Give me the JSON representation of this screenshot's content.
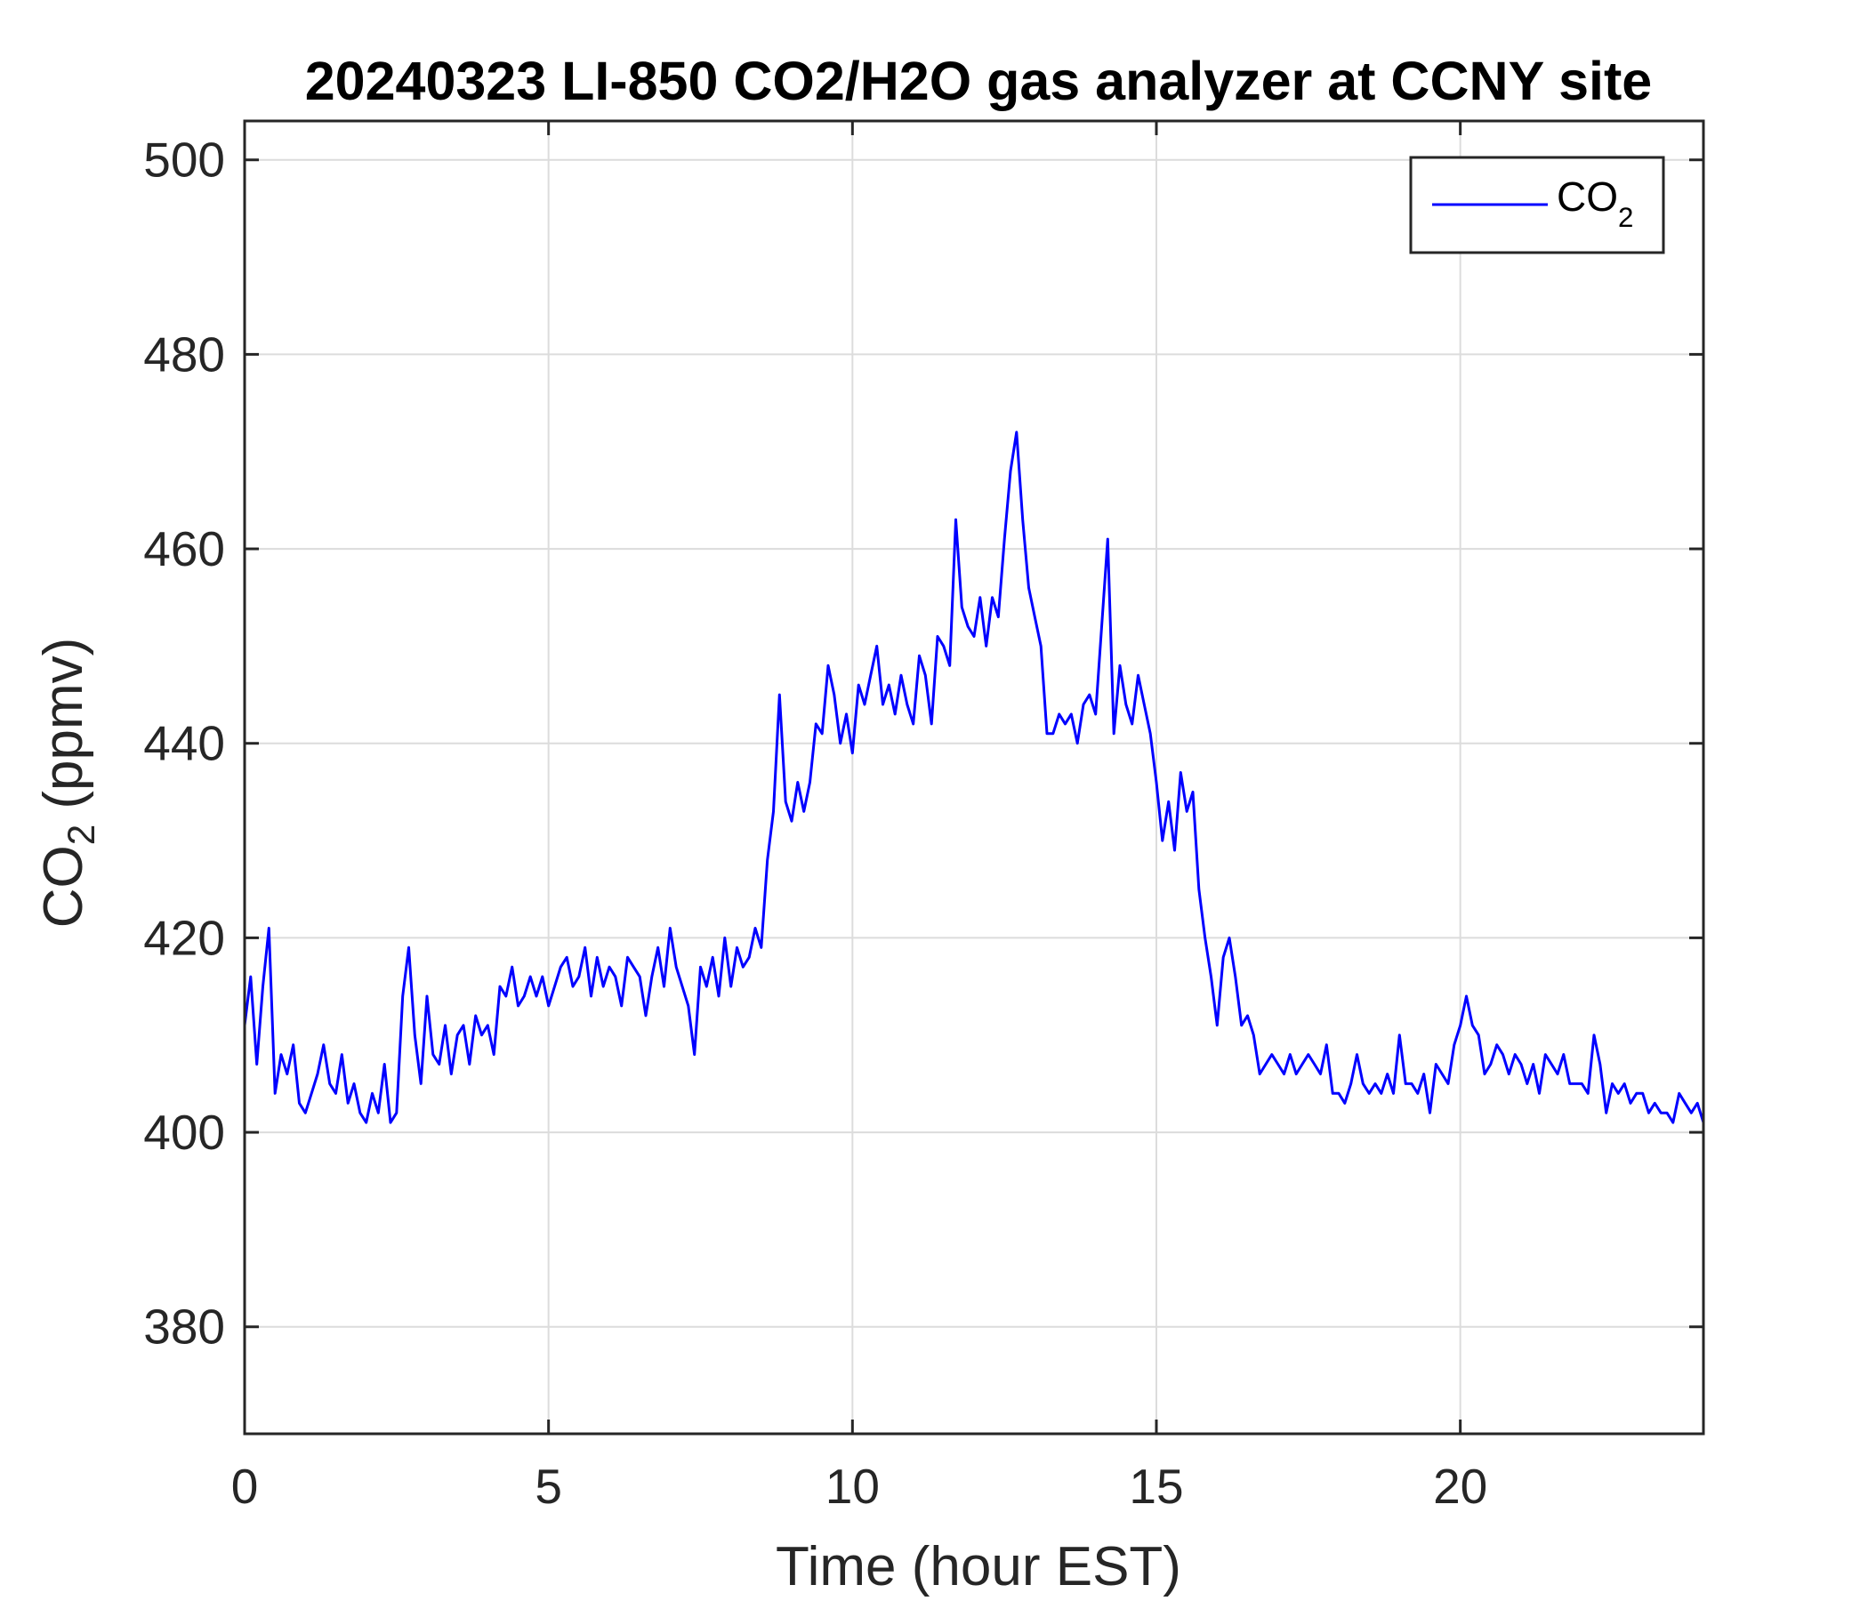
{
  "chart_data": {
    "type": "line",
    "title": "20240323 LI-850 CO2/H2O gas analyzer at CCNY site",
    "xlabel": "Time (hour EST)",
    "ylabel": {
      "main": "CO",
      "sub": "2",
      "unit": " (ppmv)"
    },
    "xlim": [
      0,
      24
    ],
    "ylim": [
      369,
      504
    ],
    "xticks": [
      0,
      5,
      10,
      15,
      20
    ],
    "yticks": [
      380,
      400,
      420,
      440,
      460,
      480,
      500
    ],
    "grid": true,
    "legend_position": "top-right",
    "legend": [
      {
        "main": "CO",
        "sub": "2"
      }
    ],
    "series": [
      {
        "color": "#0000ff",
        "x": [
          0,
          0.1,
          0.2,
          0.3,
          0.4,
          0.5,
          0.6,
          0.7,
          0.8,
          0.9,
          1.0,
          1.1,
          1.2,
          1.3,
          1.4,
          1.5,
          1.6,
          1.7,
          1.8,
          1.9,
          2.0,
          2.1,
          2.2,
          2.3,
          2.4,
          2.5,
          2.6,
          2.7,
          2.8,
          2.9,
          3.0,
          3.1,
          3.2,
          3.3,
          3.4,
          3.5,
          3.6,
          3.7,
          3.8,
          3.9,
          4.0,
          4.1,
          4.2,
          4.3,
          4.4,
          4.5,
          4.6,
          4.7,
          4.8,
          4.9,
          5.0,
          5.1,
          5.2,
          5.3,
          5.4,
          5.5,
          5.6,
          5.7,
          5.8,
          5.9,
          6.0,
          6.1,
          6.2,
          6.3,
          6.4,
          6.5,
          6.6,
          6.7,
          6.8,
          6.9,
          7.0,
          7.1,
          7.2,
          7.3,
          7.4,
          7.5,
          7.6,
          7.7,
          7.8,
          7.9,
          8.0,
          8.1,
          8.2,
          8.3,
          8.4,
          8.5,
          8.6,
          8.7,
          8.8,
          8.9,
          9.0,
          9.1,
          9.2,
          9.3,
          9.4,
          9.5,
          9.6,
          9.7,
          9.8,
          9.9,
          10.0,
          10.1,
          10.2,
          10.3,
          10.4,
          10.5,
          10.6,
          10.7,
          10.8,
          10.9,
          11.0,
          11.1,
          11.2,
          11.3,
          11.4,
          11.5,
          11.6,
          11.7,
          11.8,
          11.9,
          12.0,
          12.1,
          12.2,
          12.3,
          12.4,
          12.5,
          12.6,
          12.7,
          12.8,
          12.9,
          13.0,
          13.1,
          13.2,
          13.3,
          13.4,
          13.5,
          13.6,
          13.7,
          13.8,
          13.9,
          14.0,
          14.1,
          14.2,
          14.3,
          14.4,
          14.5,
          14.6,
          14.7,
          14.8,
          14.9,
          15.0,
          15.1,
          15.2,
          15.3,
          15.4,
          15.5,
          15.6,
          15.7,
          15.8,
          15.9,
          16.0,
          16.1,
          16.2,
          16.3,
          16.4,
          16.5,
          16.6,
          16.7,
          16.8,
          16.9,
          17.0,
          17.1,
          17.2,
          17.3,
          17.4,
          17.5,
          17.6,
          17.7,
          17.8,
          17.9,
          18.0,
          18.1,
          18.2,
          18.3,
          18.4,
          18.5,
          18.6,
          18.7,
          18.8,
          18.9,
          19.0,
          19.1,
          19.2,
          19.3,
          19.4,
          19.5,
          19.6,
          19.7,
          19.8,
          19.9,
          20.0,
          20.1,
          20.2,
          20.3,
          20.4,
          20.5,
          20.6,
          20.7,
          20.8,
          20.9,
          21.0,
          21.1,
          21.2,
          21.3,
          21.4,
          21.5,
          21.6,
          21.7,
          21.8,
          21.9,
          22.0,
          22.1,
          22.2,
          22.3,
          22.4,
          22.5,
          22.6,
          22.7,
          22.8,
          22.9,
          23.0,
          23.1,
          23.2,
          23.3,
          23.4,
          23.5,
          23.6,
          23.7,
          23.8,
          23.9,
          24.0
        ],
        "y": [
          411,
          416,
          407,
          415,
          421,
          404,
          408,
          406,
          409,
          403,
          402,
          404,
          406,
          409,
          405,
          404,
          408,
          403,
          405,
          402,
          401,
          404,
          402,
          407,
          401,
          402,
          414,
          419,
          410,
          405,
          414,
          408,
          407,
          411,
          406,
          410,
          411,
          407,
          412,
          410,
          411,
          408,
          415,
          414,
          417,
          413,
          414,
          416,
          414,
          416,
          413,
          415,
          417,
          418,
          415,
          416,
          419,
          414,
          418,
          415,
          417,
          416,
          413,
          418,
          417,
          416,
          412,
          416,
          419,
          415,
          421,
          417,
          415,
          413,
          408,
          417,
          415,
          418,
          414,
          420,
          415,
          419,
          417,
          418,
          421,
          419,
          428,
          433,
          445,
          434,
          432,
          436,
          433,
          436,
          442,
          441,
          448,
          445,
          440,
          443,
          439,
          446,
          444,
          447,
          450,
          444,
          446,
          443,
          447,
          444,
          442,
          449,
          447,
          442,
          451,
          450,
          448,
          463,
          454,
          452,
          451,
          455,
          450,
          455,
          453,
          461,
          468,
          472,
          463,
          456,
          453,
          450,
          441,
          441,
          443,
          442,
          443,
          440,
          444,
          445,
          443,
          452,
          461,
          441,
          448,
          444,
          442,
          447,
          444,
          441,
          436,
          430,
          434,
          429,
          437,
          433,
          435,
          425,
          420,
          416,
          411,
          418,
          420,
          416,
          411,
          412,
          410,
          406,
          407,
          408,
          407,
          406,
          408,
          406,
          407,
          408,
          407,
          406,
          409,
          404,
          404,
          403,
          405,
          408,
          405,
          404,
          405,
          404,
          406,
          404,
          410,
          405,
          405,
          404,
          406,
          402,
          407,
          406,
          405,
          409,
          411,
          414,
          411,
          410,
          406,
          407,
          409,
          408,
          406,
          408,
          407,
          405,
          407,
          404,
          408,
          407,
          406,
          408,
          405,
          405,
          405,
          404,
          410,
          407,
          402,
          405,
          404,
          405,
          403,
          404,
          404,
          402,
          403,
          402,
          402,
          401,
          404,
          403,
          402,
          403,
          401
        ]
      }
    ]
  }
}
